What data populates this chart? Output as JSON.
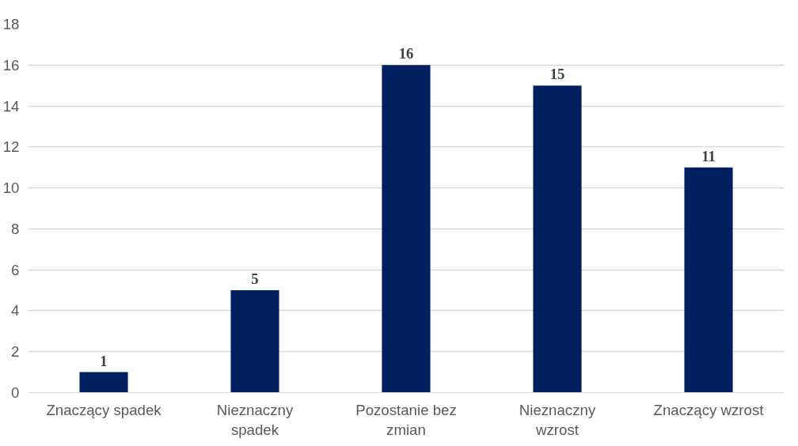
{
  "chart_data": {
    "type": "bar",
    "categories": [
      "Znaczący spadek",
      "Nieznaczny spadek",
      "Pozostanie bez zmian",
      "Nieznaczny wzrost",
      "Znaczący wzrost"
    ],
    "values": [
      1,
      5,
      16,
      15,
      11
    ],
    "color": "#002060",
    "ylim": [
      0,
      18
    ],
    "yticks": [
      0,
      2,
      4,
      6,
      8,
      10,
      12,
      14,
      16,
      18
    ],
    "grid": "y",
    "data_labels": true
  }
}
